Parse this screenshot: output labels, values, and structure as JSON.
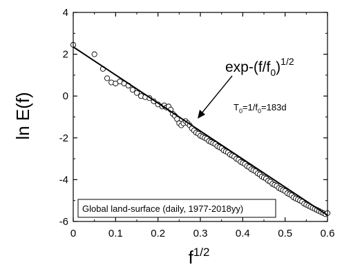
{
  "chart_data": {
    "type": "scatter",
    "title": "",
    "xlabel": "f",
    "xlabel_sup": "1/2",
    "ylabel": "ln E(f)",
    "xlim": [
      0,
      0.6
    ],
    "ylim": [
      -6,
      4
    ],
    "xticks": [
      0,
      0.1,
      0.2,
      0.3,
      0.4,
      0.5,
      0.6
    ],
    "xtick_labels": [
      "0",
      "0.1",
      "0.2",
      "0.3",
      "0.4",
      "0.5",
      "0.6"
    ],
    "yticks": [
      -6,
      -4,
      -2,
      0,
      2,
      4
    ],
    "ytick_labels": [
      "-6",
      "-4",
      "-2",
      "0",
      "2",
      "4"
    ],
    "grid": false,
    "fit_line": {
      "x": [
        0,
        0.6
      ],
      "y": [
        2.35,
        -5.7
      ]
    },
    "annotation_main": {
      "base": "exp-(f/f",
      "sub": "0",
      "close": ")",
      "sup": "1/2"
    },
    "annotation_param": {
      "t": "T",
      "t_sub": "0",
      "mid": "=1/f",
      "f_sub": "0",
      "value": "=183d"
    },
    "box_label": "Global land-surface (daily, 1977-2018yy)",
    "series": [
      {
        "marker": "open-circle",
        "x": [
          0.0,
          0.05,
          0.07,
          0.08,
          0.09,
          0.1,
          0.11,
          0.12,
          0.13,
          0.14,
          0.15,
          0.16,
          0.17,
          0.18,
          0.19,
          0.2,
          0.21,
          0.215,
          0.22,
          0.225,
          0.23,
          0.235,
          0.24,
          0.245,
          0.25,
          0.255,
          0.26,
          0.265,
          0.27,
          0.275,
          0.28,
          0.285,
          0.29,
          0.295,
          0.3,
          0.305,
          0.31,
          0.315,
          0.32,
          0.325,
          0.33,
          0.335,
          0.34,
          0.345,
          0.35,
          0.355,
          0.36,
          0.365,
          0.37,
          0.375,
          0.38,
          0.385,
          0.39,
          0.395,
          0.4,
          0.405,
          0.41,
          0.415,
          0.42,
          0.425,
          0.43,
          0.435,
          0.44,
          0.445,
          0.45,
          0.455,
          0.46,
          0.465,
          0.47,
          0.475,
          0.48,
          0.485,
          0.49,
          0.495,
          0.5,
          0.505,
          0.51,
          0.515,
          0.52,
          0.525,
          0.53,
          0.535,
          0.54,
          0.545,
          0.55,
          0.555,
          0.56,
          0.565,
          0.57,
          0.575,
          0.58,
          0.585,
          0.59,
          0.595,
          0.6
        ],
        "y": [
          2.45,
          2.0,
          1.3,
          0.85,
          0.65,
          0.6,
          0.7,
          0.6,
          0.5,
          0.3,
          0.15,
          0.0,
          -0.05,
          -0.1,
          -0.25,
          -0.4,
          -0.5,
          -0.45,
          -0.55,
          -0.5,
          -0.65,
          -0.85,
          -0.95,
          -1.1,
          -1.3,
          -1.4,
          -1.3,
          -1.2,
          -1.3,
          -1.4,
          -1.55,
          -1.65,
          -1.75,
          -1.8,
          -1.9,
          -1.95,
          -2.0,
          -2.05,
          -2.15,
          -2.2,
          -2.25,
          -2.3,
          -2.4,
          -2.45,
          -2.5,
          -2.6,
          -2.65,
          -2.7,
          -2.8,
          -2.85,
          -2.9,
          -3.0,
          -3.05,
          -3.15,
          -3.2,
          -3.25,
          -3.35,
          -3.4,
          -3.5,
          -3.55,
          -3.6,
          -3.7,
          -3.75,
          -3.85,
          -3.9,
          -3.95,
          -4.05,
          -4.1,
          -4.2,
          -4.25,
          -4.3,
          -4.4,
          -4.45,
          -4.5,
          -4.55,
          -4.65,
          -4.7,
          -4.75,
          -4.85,
          -4.9,
          -4.95,
          -5.0,
          -5.05,
          -5.15,
          -5.2,
          -5.25,
          -5.3,
          -5.35,
          -5.4,
          -5.45,
          -5.5,
          -5.55,
          -5.6,
          -5.65,
          -5.6
        ]
      }
    ]
  }
}
